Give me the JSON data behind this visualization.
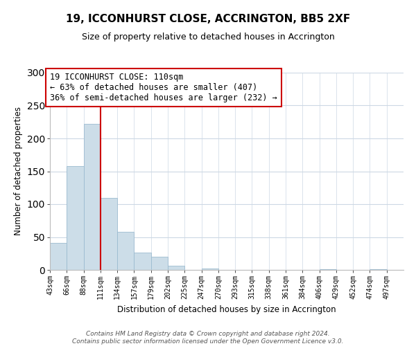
{
  "title": "19, ICCONHURST CLOSE, ACCRINGTON, BB5 2XF",
  "subtitle": "Size of property relative to detached houses in Accrington",
  "xlabel": "Distribution of detached houses by size in Accrington",
  "ylabel": "Number of detached properties",
  "bin_labels": [
    "43sqm",
    "66sqm",
    "88sqm",
    "111sqm",
    "134sqm",
    "157sqm",
    "179sqm",
    "202sqm",
    "225sqm",
    "247sqm",
    "270sqm",
    "293sqm",
    "315sqm",
    "338sqm",
    "361sqm",
    "384sqm",
    "406sqm",
    "429sqm",
    "452sqm",
    "474sqm",
    "497sqm"
  ],
  "bar_heights": [
    41,
    158,
    222,
    109,
    58,
    26,
    20,
    6,
    0,
    2,
    0,
    0,
    0,
    0,
    0,
    0,
    1,
    0,
    0,
    1,
    0
  ],
  "bar_color": "#ccdde8",
  "bar_edge_color": "#9bbbd0",
  "ylim": [
    0,
    300
  ],
  "yticks": [
    0,
    50,
    100,
    150,
    200,
    250,
    300
  ],
  "property_line_x": 3,
  "property_line_color": "#cc0000",
  "annotation_text": "19 ICCONHURST CLOSE: 110sqm\n← 63% of detached houses are smaller (407)\n36% of semi-detached houses are larger (232) →",
  "annotation_box_color": "#ffffff",
  "annotation_box_edge": "#cc0000",
  "footer_text": "Contains HM Land Registry data © Crown copyright and database right 2024.\nContains public sector information licensed under the Open Government Licence v3.0.",
  "bg_color": "#ffffff",
  "grid_color": "#ccd8e4"
}
